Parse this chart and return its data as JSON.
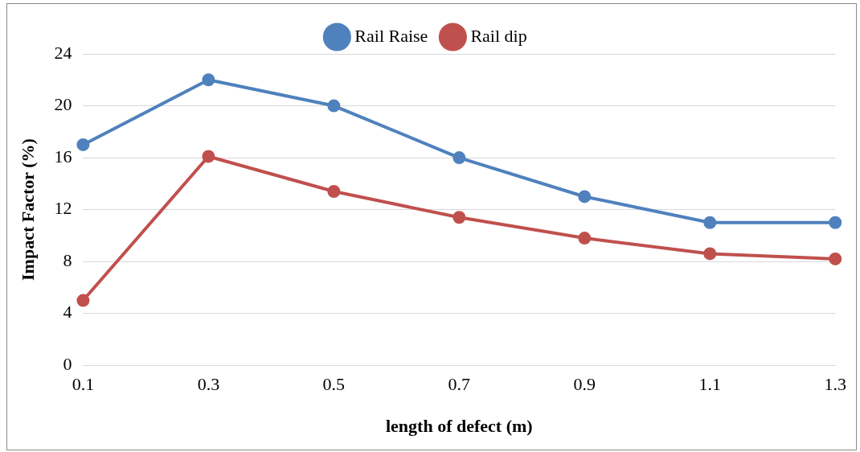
{
  "chart_data": {
    "type": "line",
    "xlabel": "length of defect (m)",
    "ylabel": "Impact Factor (%)",
    "categories": [
      "0.1",
      "0.3",
      "0.5",
      "0.7",
      "0.9",
      "1.1",
      "1.3"
    ],
    "series": [
      {
        "name": "Rail Raise",
        "color": "#4f81bd",
        "values": [
          17,
          22,
          20,
          16,
          13,
          11,
          11
        ]
      },
      {
        "name": "Rail dip",
        "color": "#c0504d",
        "values": [
          5,
          16.1,
          13.4,
          11.4,
          9.8,
          8.6,
          8.2
        ]
      }
    ],
    "ylim": [
      0,
      24
    ],
    "yticks": [
      0,
      4,
      8,
      12,
      16,
      20,
      24
    ],
    "grid": "y",
    "legend": "top",
    "marker": "circle",
    "line_style": "solid"
  }
}
